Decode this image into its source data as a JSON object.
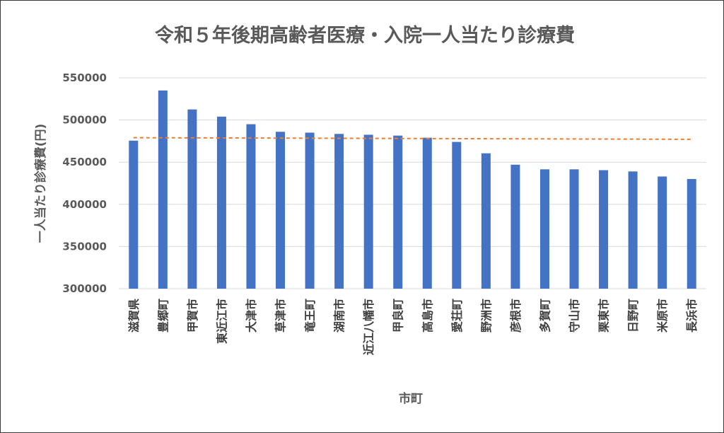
{
  "chart_data": {
    "type": "bar",
    "title": "令和５年後期高齢者医療・入院一人当たり診療費",
    "xlabel": "市町",
    "ylabel": "一人当たり診療費(円)",
    "ylim": [
      300000,
      550000
    ],
    "yticks": [
      300000,
      350000,
      400000,
      450000,
      500000,
      550000
    ],
    "grid": true,
    "categories": [
      "滋賀県",
      "豊郷町",
      "甲賀市",
      "東近江市",
      "大津市",
      "草津市",
      "竜王町",
      "湖南市",
      "近江八幡市",
      "甲良町",
      "高島市",
      "愛荘町",
      "野洲市",
      "彦根市",
      "多賀町",
      "守山市",
      "栗東市",
      "日野町",
      "米原市",
      "長浜市"
    ],
    "series": [
      {
        "type": "bar",
        "color": "#4472C4",
        "values": [
          475500,
          535000,
          512500,
          504000,
          495000,
          486000,
          485000,
          483500,
          482500,
          481500,
          479000,
          474000,
          460500,
          447000,
          441500,
          441500,
          440500,
          439000,
          433000,
          430000
        ]
      },
      {
        "type": "line",
        "style": "dashed",
        "color": "#ED7D31",
        "values": [
          479000,
          478900,
          478800,
          478700,
          478600,
          478500,
          478400,
          478300,
          478200,
          478100,
          478000,
          477900,
          477800,
          477700,
          477600,
          477500,
          477400,
          477300,
          477200,
          477100
        ]
      }
    ]
  }
}
